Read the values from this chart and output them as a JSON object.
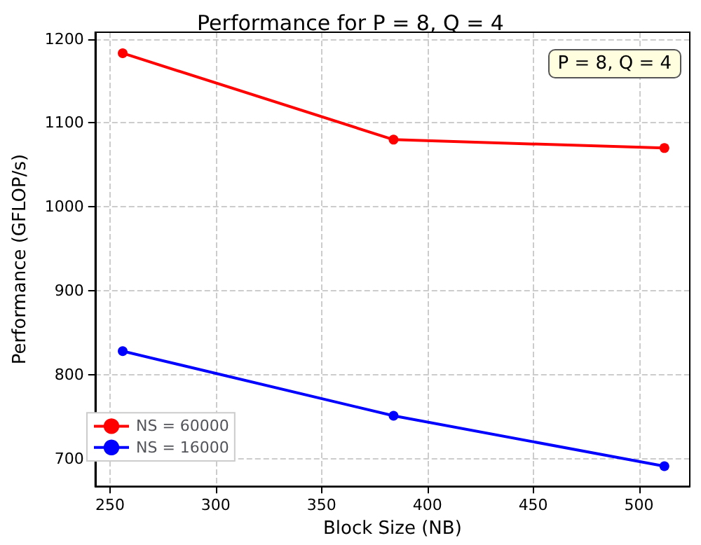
{
  "chart_data": {
    "type": "line",
    "title": "Performance for P = 8, Q = 4",
    "xlabel": "Block Size (NB)",
    "ylabel": "Performance (GFLOP/s)",
    "annotations": [
      "P = 8, Q = 4"
    ],
    "x": [
      256,
      384,
      512
    ],
    "series": [
      {
        "name": "NS = 60000",
        "color": "#ff0000",
        "values": [
          1183,
          1080,
          1070
        ]
      },
      {
        "name": "NS = 16000",
        "color": "#0000ff",
        "values": [
          828,
          751,
          691
        ]
      }
    ],
    "xlim": [
      243,
      524
    ],
    "xticks": [
      250,
      300,
      350,
      400,
      450,
      500
    ],
    "ylim": [
      667,
      1208
    ],
    "yticks": [
      700,
      800,
      900,
      1000,
      1100,
      1200
    ],
    "grid": true,
    "legend": "bottom left",
    "marker": "circle",
    "line_style": "solid"
  }
}
